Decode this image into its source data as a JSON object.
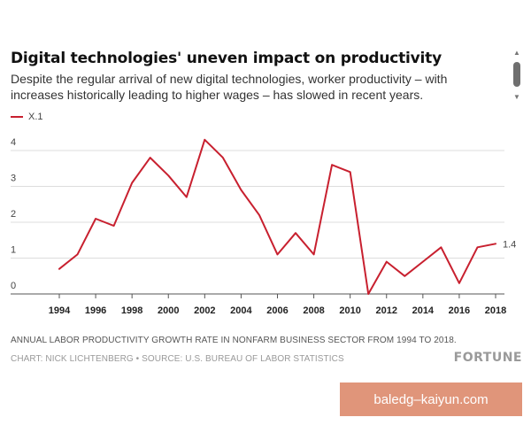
{
  "header": {
    "title": "Digital technologies' uneven impact on productivity",
    "subtitle": "Despite the regular arrival of new digital technologies, worker productivity – with increases historically leading to higher wages – has slowed in recent years."
  },
  "chart_data": {
    "type": "line",
    "title": "Digital technologies' uneven impact on productivity",
    "xlabel": "",
    "ylabel": "",
    "x": [
      1994,
      1995,
      1996,
      1997,
      1998,
      1999,
      2000,
      2001,
      2002,
      2003,
      2004,
      2005,
      2006,
      2007,
      2008,
      2009,
      2010,
      2011,
      2012,
      2013,
      2014,
      2015,
      2016,
      2017,
      2018
    ],
    "series": [
      {
        "name": "X.1",
        "color": "#c8202f",
        "values": [
          0.7,
          1.1,
          2.1,
          1.9,
          3.1,
          3.8,
          3.3,
          2.7,
          4.3,
          3.8,
          2.9,
          2.2,
          1.1,
          1.7,
          1.1,
          3.6,
          3.4,
          0.0,
          0.9,
          0.5,
          0.9,
          1.3,
          0.3,
          1.3,
          1.4
        ]
      }
    ],
    "xticks": [
      "1994",
      "1996",
      "1998",
      "2000",
      "2002",
      "2004",
      "2006",
      "2008",
      "2010",
      "2012",
      "2014",
      "2016",
      "2018"
    ],
    "yticks": [
      "0",
      "1",
      "2",
      "3",
      "4"
    ],
    "ylim": [
      0,
      4.4
    ],
    "xlim": [
      1994,
      2018
    ],
    "grid": true,
    "legend": "top-left",
    "end_label": "1.4"
  },
  "footer": {
    "caption": "ANNUAL LABOR PRODUCTIVITY GROWTH RATE IN NONFARM BUSINESS SECTOR FROM 1994 TO 2018.",
    "source": "CHART: NICK LICHTENBERG • SOURCE: U.S. BUREAU OF LABOR STATISTICS",
    "brand": "FORTUNE"
  },
  "watermark": {
    "text": "baledg–kaiyun.com"
  },
  "scrollbar": {
    "up_icon": "scroll-up-arrow-icon",
    "down_icon": "scroll-down-arrow-icon"
  }
}
